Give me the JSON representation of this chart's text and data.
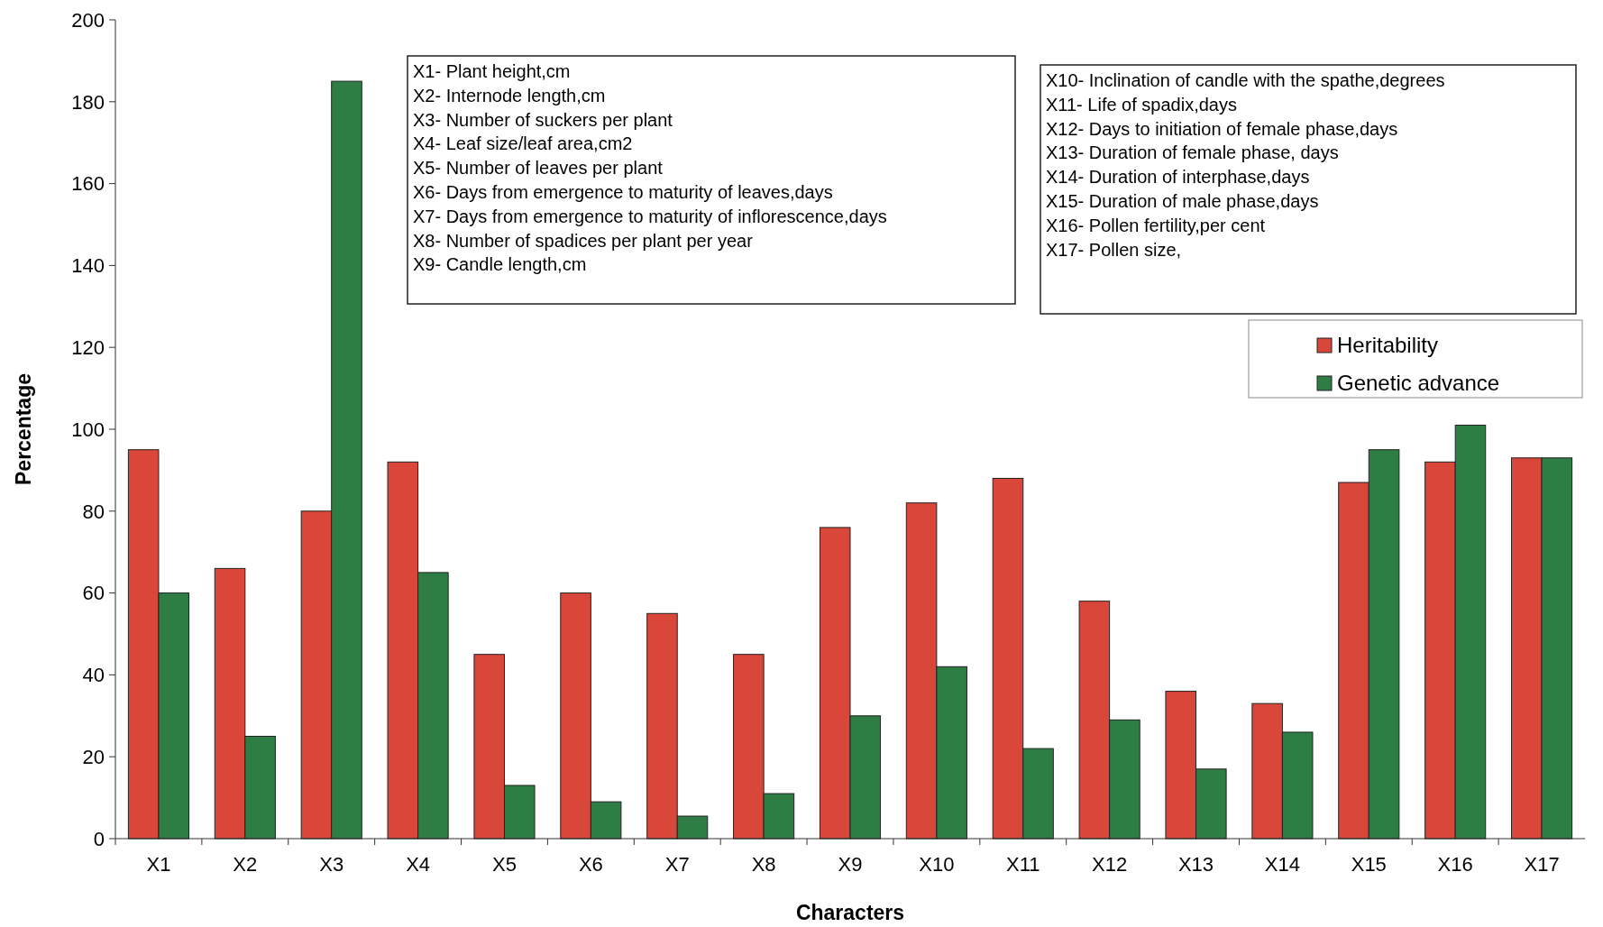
{
  "chart_data": {
    "type": "bar",
    "xlabel": "Characters",
    "ylabel": "Percentage",
    "categories": [
      "X1",
      "X2",
      "X3",
      "X4",
      "X5",
      "X6",
      "X7",
      "X8",
      "X9",
      "X10",
      "X11",
      "X12",
      "X13",
      "X14",
      "X15",
      "X16",
      "X17"
    ],
    "series": [
      {
        "name": "Heritability",
        "color": "#d9463a",
        "values": [
          95,
          66,
          80,
          92,
          45,
          60,
          55,
          45,
          76,
          82,
          88,
          58,
          36,
          33,
          87,
          92,
          93
        ]
      },
      {
        "name": "Genetic advance",
        "color": "#2e7d45",
        "values": [
          60,
          25,
          185,
          65,
          13,
          9,
          5.5,
          11,
          30,
          42,
          22,
          29,
          17,
          26,
          95,
          101,
          93
        ]
      }
    ],
    "ylim": [
      0,
      200
    ],
    "yticks": [
      0,
      20,
      40,
      60,
      80,
      100,
      120,
      140,
      160,
      180,
      200
    ],
    "grid": false,
    "legend": "top right",
    "annotations": [
      "X1- Plant height,cm\nX2- Internode length,cm\nX3- Number of suckers per plant\nX4- Leaf size/leaf area,cm2\nX5- Number of leaves per plant\nX6- Days from emergence to maturity of leaves,days\nX7- Days from emergence to maturity of inflorescence,days\nX8- Number of spadices per plant per year\nX9- Candle length,cm",
      "X10- Inclination of candle with the spathe,degrees\nX11- Life of spadix,days\nX12- Days to initiation of female phase,days\nX13- Duration of female phase, days\nX14- Duration of interphase,days\nX15- Duration of male phase,days\nX16- Pollen fertility,per cent\nX17- Pollen size,"
    ]
  }
}
